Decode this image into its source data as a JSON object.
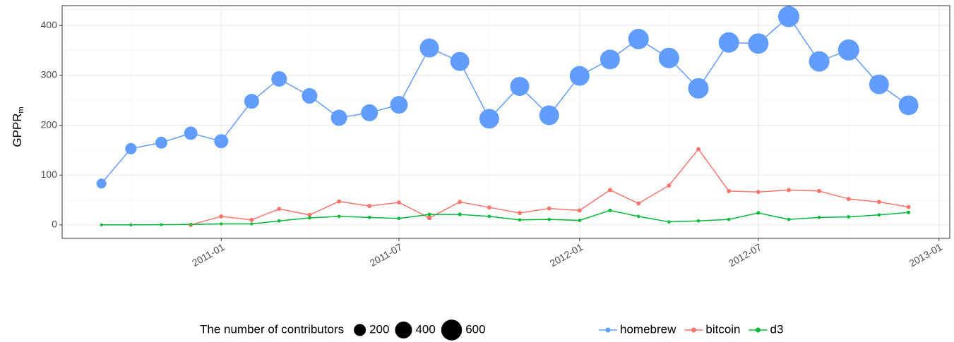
{
  "chart_data": {
    "type": "line",
    "ylabel": "GPPR",
    "ylabel_subscript": "m",
    "x": [
      "2010-09",
      "2010-10",
      "2010-11",
      "2010-12",
      "2011-01",
      "2011-02",
      "2011-03",
      "2011-04",
      "2011-05",
      "2011-06",
      "2011-07",
      "2011-08",
      "2011-09",
      "2011-10",
      "2011-11",
      "2011-12",
      "2012-01",
      "2012-02",
      "2012-03",
      "2012-04",
      "2012-05",
      "2012-06",
      "2012-07",
      "2012-08",
      "2012-09",
      "2012-10",
      "2012-11",
      "2012-12"
    ],
    "series": [
      {
        "name": "homebrew",
        "color": "#619CFF",
        "values": [
          83,
          153,
          165,
          184,
          168,
          248,
          293,
          259,
          215,
          225,
          241,
          355,
          328,
          213,
          278,
          220,
          299,
          332,
          373,
          335,
          274,
          366,
          364,
          418,
          328,
          351,
          282,
          240
        ],
        "sizes": [
          136,
          178,
          200,
          250,
          278,
          306,
          336,
          336,
          367,
          400,
          434,
          506,
          506,
          544,
          506,
          544,
          544,
          544,
          584,
          584,
          584,
          584,
          584,
          625,
          584,
          625,
          544,
          544
        ]
      },
      {
        "name": "bitcoin",
        "color": "#F8766D",
        "values": [
          null,
          null,
          null,
          0,
          17,
          10,
          32,
          20,
          47,
          38,
          45,
          14,
          46,
          35,
          24,
          33,
          29,
          70,
          43,
          79,
          152,
          68,
          66,
          70,
          68,
          52,
          46,
          36
        ],
        "sizes": [
          null,
          null,
          null,
          25,
          25,
          25,
          25,
          25,
          25,
          25,
          25,
          30,
          25,
          25,
          25,
          25,
          25,
          25,
          25,
          25,
          25,
          25,
          25,
          25,
          25,
          25,
          25,
          25
        ]
      },
      {
        "name": "d3",
        "color": "#00BA38",
        "values": [
          0,
          0,
          0.5,
          1,
          2,
          2,
          8,
          14,
          17,
          15,
          13,
          21,
          21,
          17,
          10,
          11,
          9,
          29,
          17,
          6,
          8,
          11,
          24,
          11,
          15,
          16,
          20,
          25
        ],
        "sizes": [
          12,
          12,
          12,
          12,
          12,
          12,
          15,
          15,
          15,
          15,
          15,
          18,
          18,
          15,
          15,
          15,
          15,
          18,
          15,
          15,
          15,
          15,
          18,
          15,
          15,
          15,
          15,
          18
        ]
      }
    ],
    "xlim": [
      "2010-07-23",
      "2013-01-12"
    ],
    "xticks": [
      "2011-01",
      "2011-07",
      "2012-01",
      "2012-07",
      "2013-01"
    ],
    "x_minor_ticks": [
      "2010-10",
      "2011-04",
      "2011-10",
      "2012-04",
      "2012-10"
    ],
    "ylim": [
      -27,
      440
    ],
    "yticks": [
      0,
      100,
      200,
      300,
      400
    ],
    "y_minor_ticks": [
      50,
      150,
      250,
      350
    ],
    "grid": true,
    "legend": "bottom",
    "size_legend": {
      "title": "The number of contributors",
      "values": [
        200,
        400,
        600
      ]
    }
  }
}
